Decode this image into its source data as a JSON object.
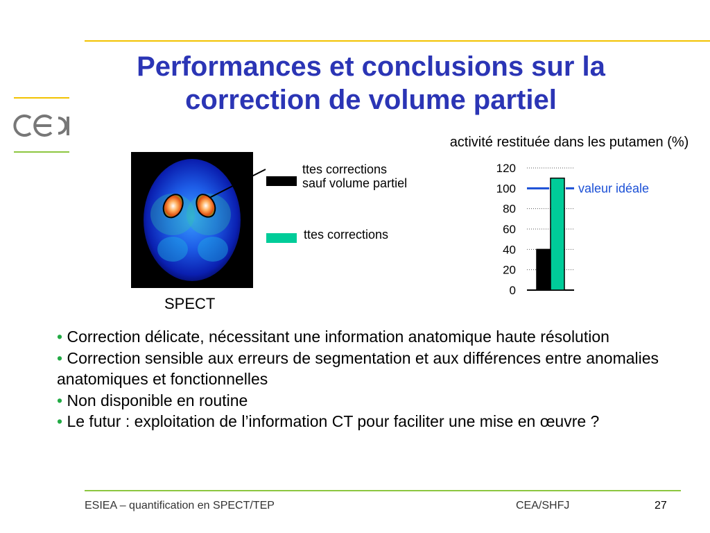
{
  "slide": {
    "title": "Performances et conclusions sur la correction de volume partiel",
    "logo_text": "cea",
    "colors": {
      "title": "#2b35b5",
      "rule_yellow": "#f2c200",
      "rule_green": "#8cc63f",
      "bullet": "#22aa44",
      "teal_bar": "#00cc99",
      "ideal_line": "#1a4fd6"
    }
  },
  "image": {
    "caption": "SPECT"
  },
  "legend": {
    "items": [
      {
        "label": "ttes corrections sauf volume partiel",
        "color": "#000000"
      },
      {
        "label": "ttes corrections",
        "color": "#00cc99"
      }
    ]
  },
  "chart_data": {
    "type": "bar",
    "title": "activité restituée dans les putamen (%)",
    "ylim": [
      0,
      120
    ],
    "yticks": [
      0,
      20,
      40,
      60,
      80,
      100,
      120
    ],
    "series": [
      {
        "values": [
          40
        ],
        "color": "#000000"
      },
      {
        "values": [
          110
        ],
        "color": "#00cc99"
      }
    ],
    "reference_line": {
      "value": 100,
      "label": "valeur idéale",
      "color": "#1a4fd6"
    },
    "grid": "dotted"
  },
  "bullets": [
    "Correction délicate, nécessitant une information anatomique haute résolution",
    "Correction sensible aux erreurs de segmentation et aux différences entre anomalies anatomiques et fonctionnelles",
    "Non disponible en routine",
    "Le futur : exploitation de l’information CT pour faciliter une mise en œuvre ?"
  ],
  "footer": {
    "left": "ESIEA – quantification en SPECT/TEP",
    "center": "CEA/SHFJ",
    "page": "27"
  }
}
